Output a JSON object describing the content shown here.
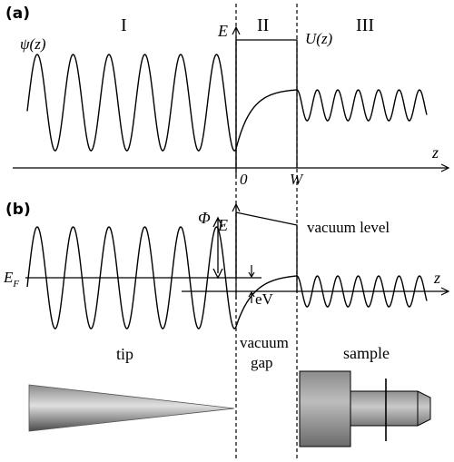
{
  "panel_a": {
    "label": "(a)",
    "region_1": "I",
    "region_2": "II",
    "region_3": "III",
    "axis_e": "E",
    "axis_z": "z",
    "wavefunction": "ψ(z)",
    "potential": "U(z)",
    "tick_zero": "0",
    "tick_w": "W"
  },
  "panel_b": {
    "label": "(b)",
    "axis_e": "E",
    "axis_z": "z",
    "work_function": "Φ",
    "fermi_e": "E",
    "fermi_sub": "F",
    "vacuum_level": "vacuum level",
    "bias": "eV"
  },
  "labels": {
    "tip": "tip",
    "vacuum_line1": "vacuum",
    "vacuum_line2": "gap",
    "sample": "sample"
  },
  "colors": {
    "line": "#000000",
    "tip_dark": "#5a5a5a",
    "tip_light": "#d6d6d6",
    "sample_dark": "#6f6f6f",
    "sample_light": "#a8a8a8"
  }
}
